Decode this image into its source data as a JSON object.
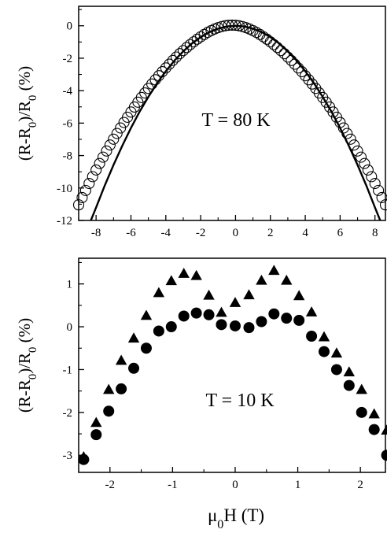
{
  "chart_data": [
    {
      "type": "scatter",
      "annotation": "T = 80 K",
      "ylabel": "(R-R0)/R0 (%)",
      "xlabel": "",
      "xlim": [
        -9,
        8.6
      ],
      "ylim": [
        -12,
        1.2
      ],
      "x_ticks": [
        -8,
        -6,
        -4,
        -2,
        0,
        2,
        4,
        6,
        8
      ],
      "y_ticks": [
        0,
        -2,
        -4,
        -6,
        -8,
        -10,
        -12
      ],
      "series": [
        {
          "marker": "open-circle",
          "x": [
            -9.0,
            -8.8,
            -8.6,
            -8.4,
            -8.2,
            -8.0,
            -7.8,
            -7.6,
            -7.4,
            -7.2,
            -7.0,
            -6.8,
            -6.6,
            -6.4,
            -6.2,
            -6.0,
            -5.8,
            -5.6,
            -5.4,
            -5.2,
            -5.0,
            -4.8,
            -4.6,
            -4.4,
            -4.2,
            -4.0,
            -3.8,
            -3.6,
            -3.4,
            -3.2,
            -3.0,
            -2.8,
            -2.6,
            -2.4,
            -2.2,
            -2.0,
            -1.8,
            -1.6,
            -1.4,
            -1.2,
            -1.0,
            -0.8,
            -0.6,
            -0.4,
            -0.2,
            0.0,
            0.2,
            0.4,
            0.6,
            0.8,
            1.0,
            1.2,
            1.4,
            1.6,
            1.8,
            2.0,
            2.2,
            2.4,
            2.6,
            2.8,
            3.0,
            3.2,
            3.4,
            3.6,
            3.8,
            4.0,
            4.2,
            4.4,
            4.6,
            4.8,
            5.0,
            5.2,
            5.4,
            5.6,
            5.8,
            6.0,
            6.2,
            6.4,
            6.6,
            6.8,
            7.0,
            7.2,
            7.4,
            7.6,
            7.8,
            8.0,
            8.2,
            8.4,
            8.6
          ],
          "y": [
            -11.04,
            -10.59,
            -10.15,
            -9.72,
            -9.3,
            -8.89,
            -8.49,
            -8.1,
            -7.72,
            -7.35,
            -6.99,
            -6.64,
            -6.3,
            -5.96,
            -5.64,
            -5.32,
            -5.01,
            -4.71,
            -4.42,
            -4.14,
            -3.86,
            -3.59,
            -3.33,
            -3.08,
            -2.83,
            -2.6,
            -2.37,
            -2.14,
            -1.93,
            -1.72,
            -1.53,
            -1.34,
            -1.16,
            -0.99,
            -0.83,
            -0.68,
            -0.54,
            -0.41,
            -0.3,
            -0.2,
            -0.12,
            -0.05,
            0.0,
            0.03,
            0.04,
            0.03,
            0.0,
            -0.05,
            -0.12,
            -0.2,
            -0.3,
            -0.41,
            -0.54,
            -0.68,
            -0.83,
            -0.99,
            -1.16,
            -1.34,
            -1.53,
            -1.72,
            -1.93,
            -2.14,
            -2.37,
            -2.6,
            -2.83,
            -3.08,
            -3.33,
            -3.59,
            -3.86,
            -4.14,
            -4.42,
            -4.71,
            -5.01,
            -5.32,
            -5.64,
            -5.96,
            -6.3,
            -6.64,
            -6.99,
            -7.35,
            -7.72,
            -8.1,
            -8.49,
            -8.89,
            -9.3,
            -9.72,
            -10.15,
            -10.59,
            -11.04
          ]
        },
        {
          "type": "line",
          "style": "solid",
          "x": [
            -8.3,
            -8.0,
            -7.5,
            -7.0,
            -6.5,
            -6.0,
            -5.5,
            -5.0,
            -4.5,
            -4.0,
            -3.5,
            -3.0,
            -2.5,
            -2.0,
            -1.5,
            -1.0,
            -0.5,
            0.0,
            0.5,
            1.0,
            1.5,
            2.0,
            2.5,
            3.0,
            3.5,
            4.0,
            4.5,
            5.0,
            5.5,
            6.0,
            6.5,
            7.0,
            7.5,
            8.0,
            8.3
          ],
          "y": [
            -12.06,
            -11.2,
            -9.84,
            -8.58,
            -7.4,
            -6.3,
            -5.29,
            -4.38,
            -3.54,
            -2.8,
            -2.14,
            -1.58,
            -1.09,
            -0.7,
            -0.39,
            -0.18,
            -0.04,
            0.0,
            -0.04,
            -0.18,
            -0.39,
            -0.7,
            -1.09,
            -1.58,
            -2.14,
            -2.8,
            -3.54,
            -4.38,
            -5.29,
            -6.3,
            -7.4,
            -8.58,
            -9.84,
            -11.2,
            -12.06
          ]
        }
      ]
    },
    {
      "type": "scatter",
      "annotation": "T = 10 K",
      "ylabel": "(R-R0)/R0 (%)",
      "xlabel": "μ0H (T)",
      "xlim": [
        -2.5,
        2.4
      ],
      "ylim": [
        -3.4,
        1.6
      ],
      "x_ticks": [
        -2,
        -1,
        0,
        1,
        2
      ],
      "y_ticks": [
        1,
        0,
        -1,
        -2,
        -3
      ],
      "series": [
        {
          "marker": "filled-triangle",
          "x": [
            -2.42,
            -2.22,
            -2.02,
            -1.82,
            -1.62,
            -1.42,
            -1.22,
            -1.02,
            -0.82,
            -0.62,
            -0.42,
            -0.22,
            0.0,
            0.22,
            0.42,
            0.62,
            0.82,
            1.02,
            1.22,
            1.42,
            1.62,
            1.82,
            2.02,
            2.22,
            2.42
          ],
          "y": [
            -3.05,
            -2.25,
            -1.48,
            -0.8,
            -0.28,
            0.25,
            0.78,
            1.06,
            1.23,
            1.18,
            0.72,
            0.32,
            0.55,
            0.73,
            1.07,
            1.3,
            1.07,
            0.71,
            0.33,
            -0.25,
            -0.63,
            -1.07,
            -1.48,
            -2.05,
            -2.43
          ]
        },
        {
          "marker": "filled-circle",
          "x": [
            -2.42,
            -2.22,
            -2.02,
            -1.82,
            -1.62,
            -1.42,
            -1.22,
            -1.02,
            -0.82,
            -0.62,
            -0.42,
            -0.22,
            0.0,
            0.22,
            0.42,
            0.62,
            0.82,
            1.02,
            1.22,
            1.42,
            1.62,
            1.82,
            2.02,
            2.22,
            2.42
          ],
          "y": [
            -3.1,
            -2.52,
            -1.97,
            -1.45,
            -0.97,
            -0.5,
            -0.1,
            0.0,
            0.25,
            0.32,
            0.28,
            0.05,
            0.02,
            -0.02,
            0.12,
            0.3,
            0.2,
            0.15,
            -0.22,
            -0.58,
            -1.0,
            -1.37,
            -2.0,
            -2.4,
            -3.0
          ]
        }
      ]
    }
  ]
}
